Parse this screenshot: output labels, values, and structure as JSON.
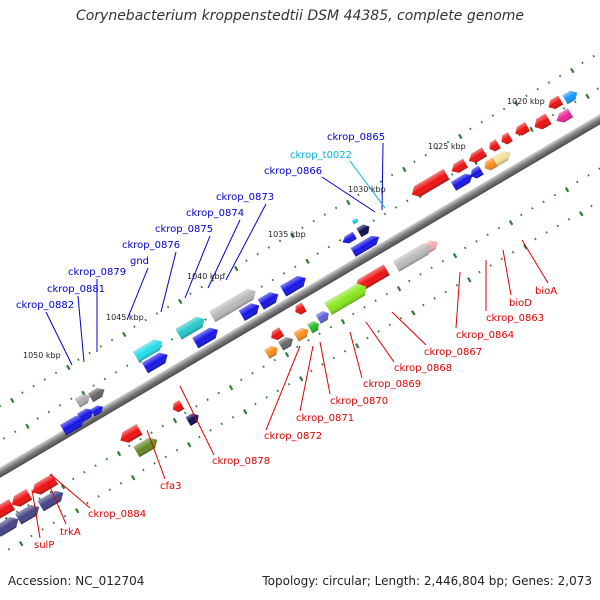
{
  "title": "Corynebacterium kroppenstedtii DSM 44385, complete genome",
  "footer": {
    "accession": "Accession: NC_012704",
    "topology": "Topology: circular; Length: 2,446,804 bp; Genes: 2,073"
  },
  "kbp_labels": [
    "1020 kbp",
    "1025 kbp",
    "1030 kbp",
    "1035 kbp",
    "1040 kbp",
    "1045 kbp",
    "1050 kbp"
  ],
  "gene_labels": {
    "ckrop_0865": "ckrop_0865",
    "ckrop_t0022": "ckrop_t0022",
    "ckrop_0866": "ckrop_0866",
    "ckrop_0873": "ckrop_0873",
    "ckrop_0874": "ckrop_0874",
    "ckrop_0875": "ckrop_0875",
    "ckrop_0876": "ckrop_0876",
    "gnd": "gnd",
    "ckrop_0879": "ckrop_0879",
    "ckrop_0881": "ckrop_0881",
    "ckrop_0882": "ckrop_0882",
    "bioA": "bioA",
    "bioD": "bioD",
    "ckrop_0863": "ckrop_0863",
    "ckrop_0864": "ckrop_0864",
    "ckrop_0867": "ckrop_0867",
    "ckrop_0868": "ckrop_0868",
    "ckrop_0869": "ckrop_0869",
    "ckrop_0870": "ckrop_0870",
    "ckrop_0871": "ckrop_0871",
    "ckrop_0872": "ckrop_0872",
    "ckrop_0878": "ckrop_0878",
    "cfa3": "cfa3",
    "ckrop_0884": "ckrop_0884",
    "trkA": "trkA",
    "sulP": "sulP"
  },
  "colors": {
    "backbone": "#8a8a8a",
    "label_blue": "#0000cc",
    "label_red": "#dd0000",
    "label_cyan": "#00b4d8",
    "tick": "#2e8b2e"
  }
}
